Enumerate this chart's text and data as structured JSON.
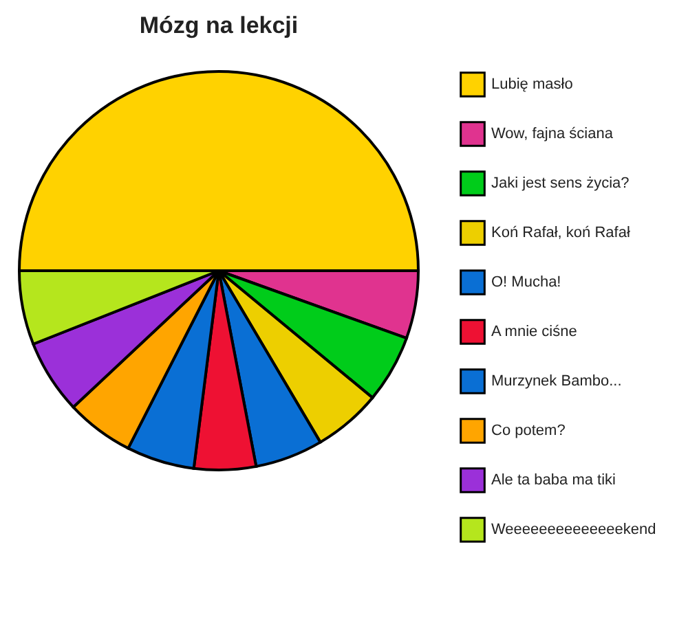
{
  "chart_data": {
    "type": "pie",
    "title": "Mózg na lekcji",
    "categories": [
      "Lubię masło",
      "Wow, fajna ściana",
      "Jaki jest sens życia?",
      "Koń Rafał, koń Rafał",
      "O! Mucha!",
      "A mnie ciśne",
      "Murzynek Bambo...",
      "Co potem?",
      "Ale ta baba ma tiki",
      "Weeeeeeeeeeeeeekend"
    ],
    "values": [
      50,
      5.5,
      5.5,
      5.5,
      5.5,
      5,
      5.5,
      5.5,
      6,
      6
    ],
    "colors": [
      "#ffd200",
      "#e0338f",
      "#00cc1a",
      "#edcf00",
      "#0a6fd4",
      "#ee1133",
      "#0a6fd4",
      "#ffa500",
      "#9b30d9",
      "#b5e61d"
    ],
    "legend": "right"
  }
}
